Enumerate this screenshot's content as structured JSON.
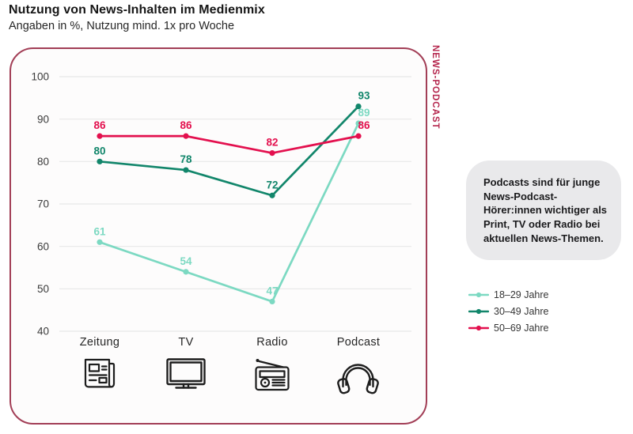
{
  "page": {
    "title": "Nutzung von News-Inhalten im Medienmix",
    "subtitle": "Angaben in %, Nutzung mind. 1x pro Woche"
  },
  "panel": {
    "side_label": "NEWS-PODCAST",
    "border_color": "#a23e56",
    "side_label_color": "#b5274e"
  },
  "callout": {
    "text": "Podcasts sind für junge News-Podcast-Hörer:innen wichtiger als Print, TV oder Radio bei aktuellen News-Themen."
  },
  "chart_data": {
    "type": "line",
    "title": "Nutzung von News-Inhalten im Medienmix",
    "subtitle": "Angaben in %, Nutzung mind. 1x pro Woche",
    "categories": [
      "Zeitung",
      "TV",
      "Radio",
      "Podcast"
    ],
    "category_icons": [
      "newspaper-icon",
      "tv-icon",
      "radio-icon",
      "headphones-icon"
    ],
    "series": [
      {
        "name": "18–29 Jahre",
        "color": "#7cd9c2",
        "values": [
          61,
          54,
          47,
          89
        ]
      },
      {
        "name": "30–49 Jahre",
        "color": "#12866b",
        "values": [
          80,
          78,
          72,
          93
        ]
      },
      {
        "name": "50–69 Jahre",
        "color": "#e3104e",
        "values": [
          86,
          86,
          82,
          86
        ]
      }
    ],
    "yticks": [
      40,
      50,
      60,
      70,
      80,
      90,
      100
    ],
    "ylim": [
      40,
      100
    ],
    "grid": true,
    "grid_color": "#e7e7e7",
    "value_labels": true,
    "legend_position": "right-outside"
  }
}
